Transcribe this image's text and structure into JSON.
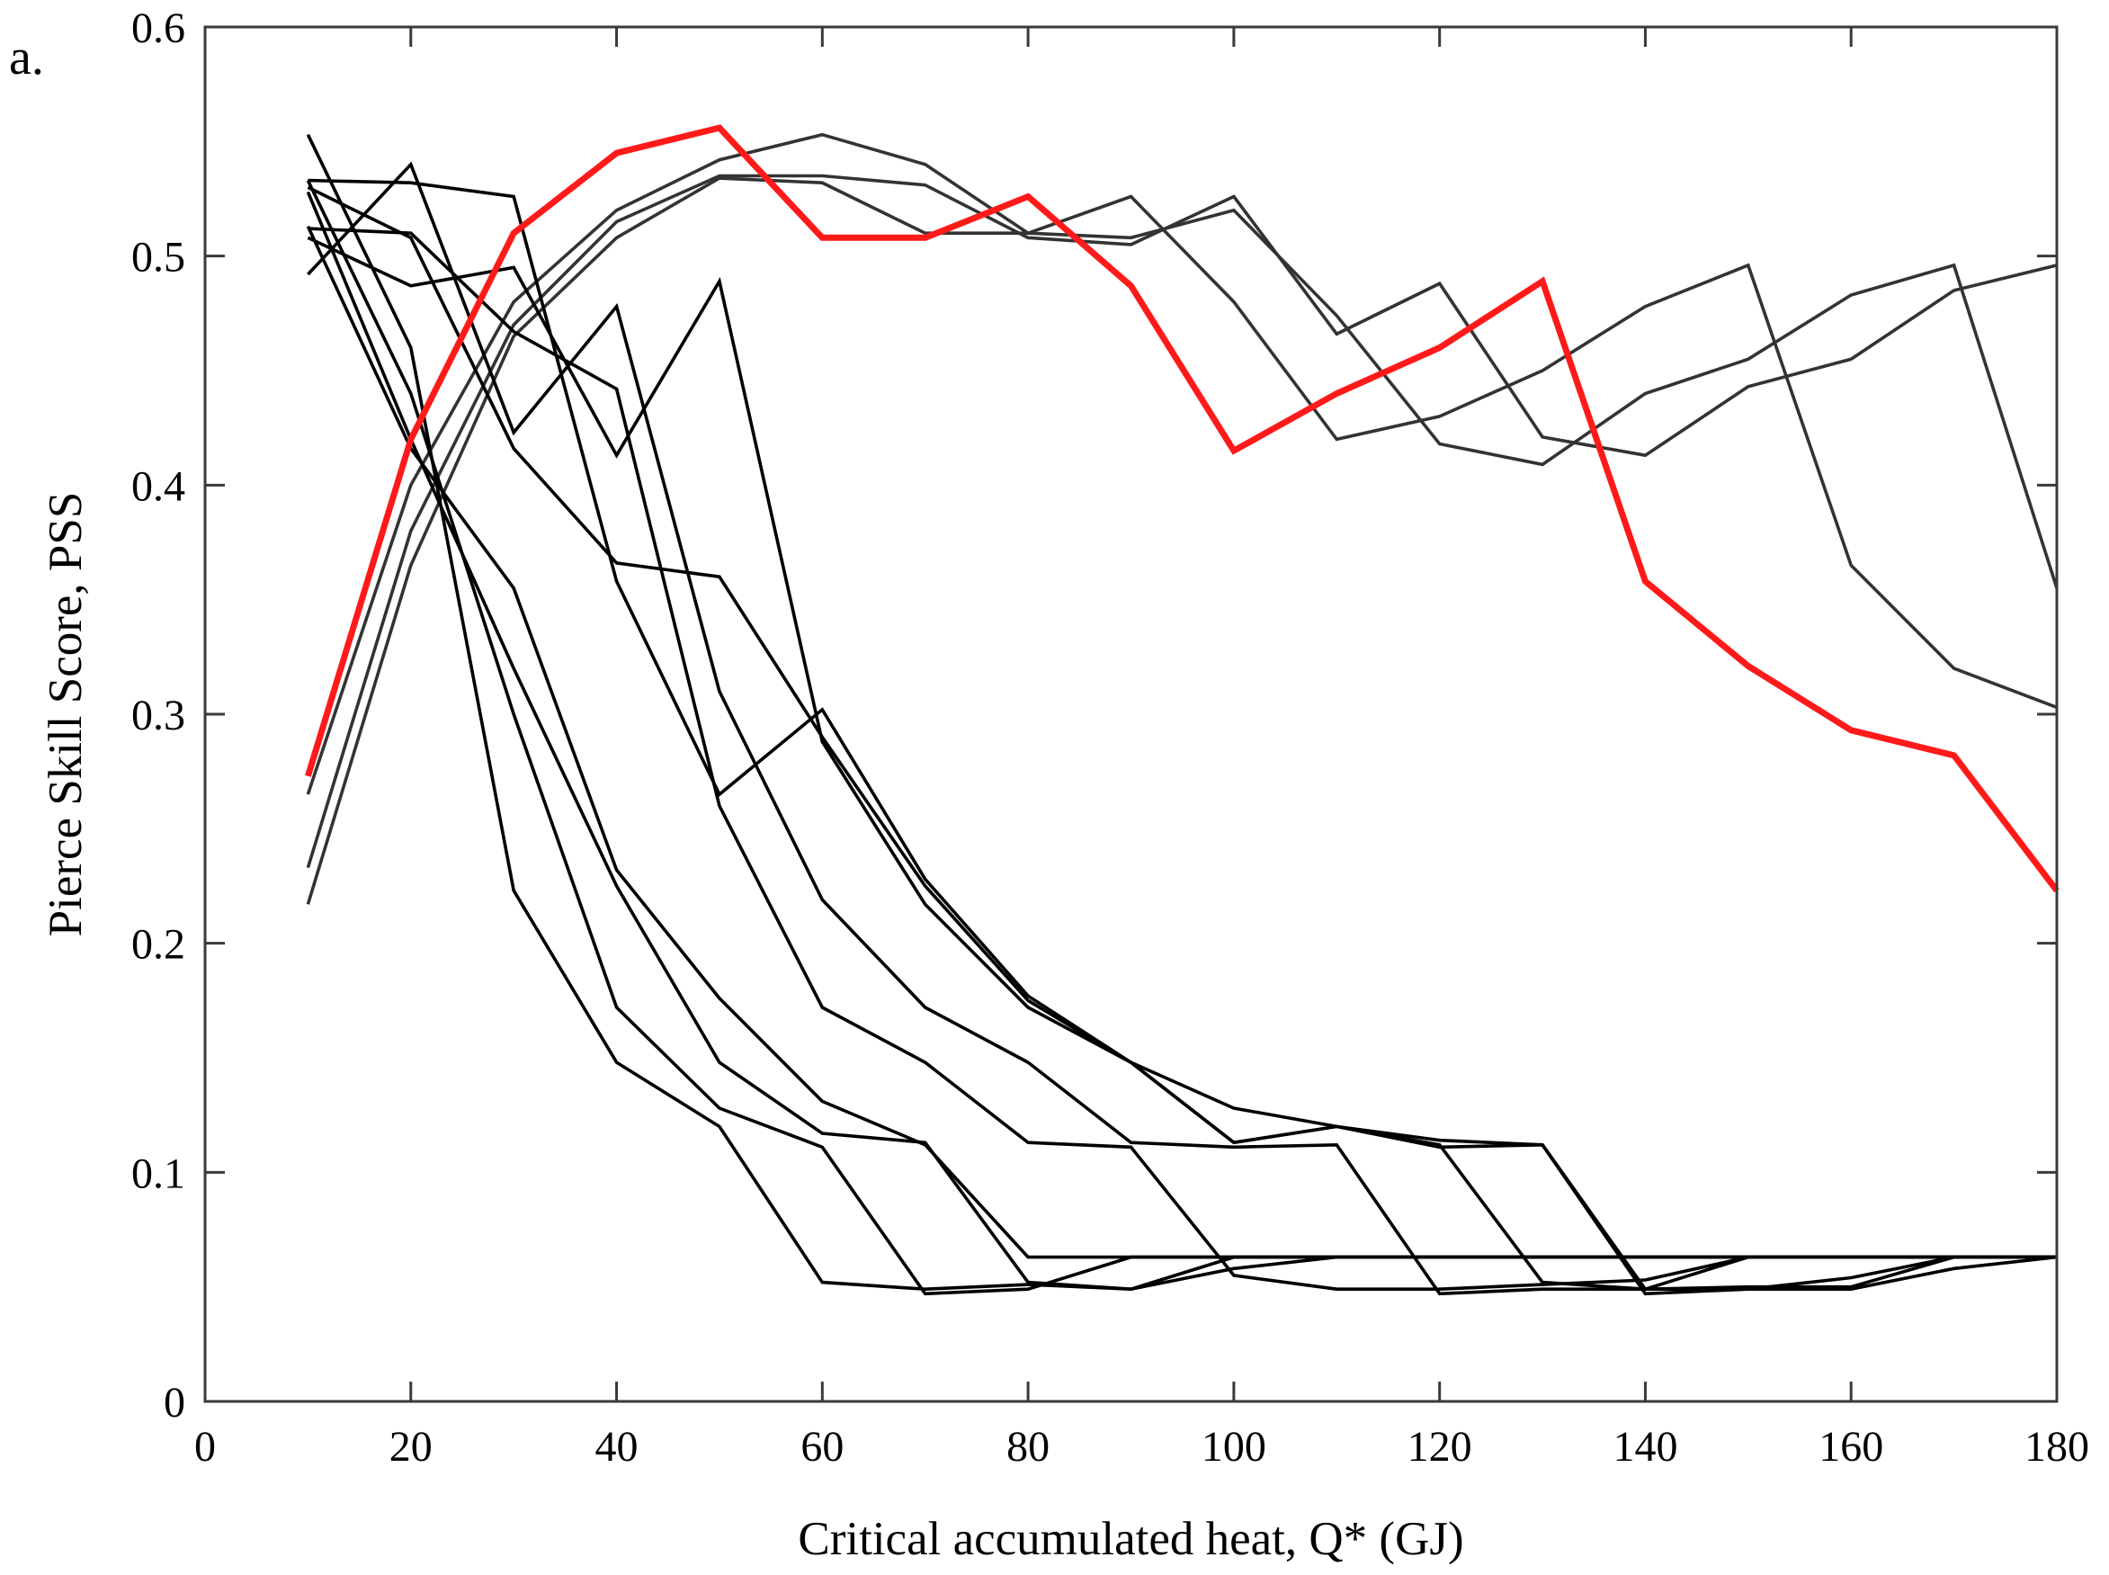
{
  "chart_data": {
    "type": "line",
    "panel_label": "a.",
    "title": "",
    "xlabel": "Critical accumulated heat, Q* (GJ)",
    "ylabel": "Pierce Skill Score, PSS",
    "xlim": [
      0,
      180
    ],
    "ylim": [
      0,
      0.6
    ],
    "xticks": [
      0,
      20,
      40,
      60,
      80,
      100,
      120,
      140,
      160,
      180
    ],
    "xtick_labels": [
      "0",
      "20",
      "40",
      "60",
      "80",
      "100",
      "120",
      "140",
      "160",
      "180"
    ],
    "yticks": [
      0,
      0.1,
      0.2,
      0.3,
      0.4,
      0.5,
      0.6
    ],
    "ytick_labels": [
      "0",
      "0.1",
      "0.2",
      "0.3",
      "0.4",
      "0.5",
      "0.6"
    ],
    "grid": false,
    "x": [
      10,
      20,
      30,
      40,
      50,
      60,
      70,
      80,
      90,
      100,
      110,
      120,
      130,
      140,
      150,
      160,
      170,
      180
    ],
    "series": [
      {
        "name": "grey-1",
        "color": "#333333",
        "values": [
          0.265,
          0.4,
          0.48,
          0.52,
          0.542,
          0.553,
          0.54,
          0.51,
          0.526,
          0.48,
          0.42,
          0.43,
          0.45,
          0.478,
          0.496,
          0.365,
          0.32,
          0.303
        ]
      },
      {
        "name": "grey-2",
        "color": "#333333",
        "values": [
          0.233,
          0.38,
          0.47,
          0.515,
          0.535,
          0.535,
          0.531,
          0.508,
          0.505,
          0.526,
          0.466,
          0.488,
          0.421,
          0.413,
          0.443,
          0.455,
          0.485,
          0.496
        ]
      },
      {
        "name": "grey-3",
        "color": "#333333",
        "values": [
          0.217,
          0.365,
          0.465,
          0.508,
          0.534,
          0.532,
          0.51,
          0.51,
          0.508,
          0.52,
          0.474,
          0.418,
          0.409,
          0.44,
          0.455,
          0.483,
          0.496,
          0.355
        ]
      },
      {
        "name": "black-1",
        "color": "#000000",
        "values": [
          0.553,
          0.46,
          0.223,
          0.148,
          0.12,
          0.052,
          0.049,
          0.051,
          0.049,
          0.058,
          0.063,
          0.063,
          0.063,
          0.063,
          0.063,
          0.063,
          0.063,
          0.063
        ]
      },
      {
        "name": "black-2",
        "color": "#000000",
        "values": [
          0.533,
          0.44,
          0.3,
          0.172,
          0.128,
          0.111,
          0.047,
          0.049,
          0.063,
          0.063,
          0.063,
          0.063,
          0.063,
          0.063,
          0.063,
          0.063,
          0.063,
          0.063
        ]
      },
      {
        "name": "black-3",
        "color": "#000000",
        "values": [
          0.528,
          0.42,
          0.32,
          0.225,
          0.148,
          0.117,
          0.113,
          0.052,
          0.049,
          0.063,
          0.063,
          0.063,
          0.063,
          0.063,
          0.063,
          0.063,
          0.063,
          0.063
        ]
      },
      {
        "name": "black-4",
        "color": "#000000",
        "values": [
          0.513,
          0.416,
          0.355,
          0.232,
          0.176,
          0.131,
          0.112,
          0.063,
          0.063,
          0.063,
          0.063,
          0.063,
          0.063,
          0.063,
          0.063,
          0.063,
          0.063,
          0.063
        ]
      },
      {
        "name": "black-5",
        "color": "#000000",
        "values": [
          0.512,
          0.51,
          0.467,
          0.442,
          0.26,
          0.172,
          0.148,
          0.113,
          0.111,
          0.055,
          0.049,
          0.049,
          0.051,
          0.053,
          0.063,
          0.063,
          0.063,
          0.063
        ]
      },
      {
        "name": "black-6",
        "color": "#000000",
        "values": [
          0.492,
          0.54,
          0.423,
          0.478,
          0.31,
          0.219,
          0.172,
          0.148,
          0.113,
          0.111,
          0.112,
          0.047,
          0.049,
          0.049,
          0.049,
          0.049,
          0.058,
          0.063
        ]
      },
      {
        "name": "black-7",
        "color": "#000000",
        "values": [
          0.508,
          0.487,
          0.495,
          0.413,
          0.489,
          0.288,
          0.217,
          0.172,
          0.148,
          0.113,
          0.12,
          0.111,
          0.112,
          0.047,
          0.049,
          0.054,
          0.063,
          0.063
        ]
      },
      {
        "name": "black-8",
        "color": "#000000",
        "values": [
          0.533,
          0.532,
          0.526,
          0.358,
          0.265,
          0.302,
          0.228,
          0.177,
          0.148,
          0.128,
          0.12,
          0.112,
          0.052,
          0.049,
          0.063,
          0.063,
          0.063,
          0.063
        ]
      },
      {
        "name": "black-9",
        "color": "#000000",
        "values": [
          0.53,
          0.508,
          0.416,
          0.366,
          0.36,
          0.29,
          0.225,
          0.175,
          0.148,
          0.113,
          0.12,
          0.114,
          0.112,
          0.049,
          0.05,
          0.05,
          0.063,
          0.063
        ]
      },
      {
        "name": "red",
        "color": "#ff1a1a",
        "values": [
          0.273,
          0.42,
          0.51,
          0.545,
          0.556,
          0.508,
          0.508,
          0.526,
          0.487,
          0.415,
          0.44,
          0.46,
          0.489,
          0.358,
          0.321,
          0.293,
          0.282,
          0.223
        ]
      }
    ]
  }
}
